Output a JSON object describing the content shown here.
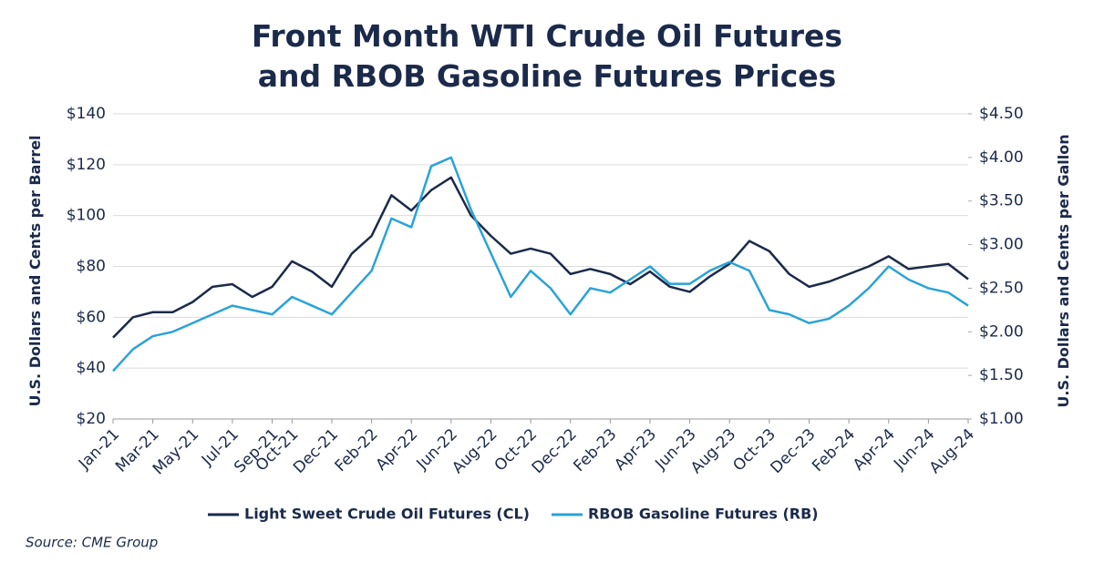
{
  "chart_data": {
    "type": "line",
    "title": "Front Month WTI Crude Oil Futures and RBOB Gasoline Futures Prices",
    "y_label": "U.S. Dollars and Cents per Barrel",
    "y2_label": "U.S. Dollars and Cents per Gallon",
    "source": "Source: CME Group",
    "x": [
      "2021-01",
      "2021-02",
      "2021-03",
      "2021-04",
      "2021-05",
      "2021-06",
      "2021-07",
      "2021-08",
      "2021-09",
      "2021-10",
      "2021-11",
      "2021-12",
      "2022-01",
      "2022-02",
      "2022-03",
      "2022-04",
      "2022-05",
      "2022-06",
      "2022-07",
      "2022-08",
      "2022-09",
      "2022-10",
      "2022-11",
      "2022-12",
      "2023-01",
      "2023-02",
      "2023-03",
      "2023-04",
      "2023-05",
      "2023-06",
      "2023-07",
      "2023-08",
      "2023-09",
      "2023-10",
      "2023-11",
      "2023-12",
      "2024-01",
      "2024-02",
      "2024-03",
      "2024-04",
      "2024-05",
      "2024-06",
      "2024-07",
      "2024-08"
    ],
    "xlim": [
      "2021-01",
      "2024-08"
    ],
    "xticks": [
      {
        "value": "2021-01",
        "label": "Jan-21"
      },
      {
        "value": "2021-03",
        "label": "Mar-21"
      },
      {
        "value": "2021-05",
        "label": "May-21"
      },
      {
        "value": "2021-07",
        "label": "Jul-21"
      },
      {
        "value": "2021-09",
        "label": "Sep-21"
      },
      {
        "value": "2021-10",
        "label": "Oct-21"
      },
      {
        "value": "2021-12",
        "label": "Dec-21"
      },
      {
        "value": "2022-02",
        "label": "Feb-22"
      },
      {
        "value": "2022-04",
        "label": "Apr-22"
      },
      {
        "value": "2022-06",
        "label": "Jun-22"
      },
      {
        "value": "2022-08",
        "label": "Aug-22"
      },
      {
        "value": "2022-10",
        "label": "Oct-22"
      },
      {
        "value": "2022-12",
        "label": "Dec-22"
      },
      {
        "value": "2023-02",
        "label": "Feb-23"
      },
      {
        "value": "2023-04",
        "label": "Apr-23"
      },
      {
        "value": "2023-06",
        "label": "Jun-23"
      },
      {
        "value": "2023-08",
        "label": "Aug-23"
      },
      {
        "value": "2023-10",
        "label": "Oct-23"
      },
      {
        "value": "2023-12",
        "label": "Dec-23"
      },
      {
        "value": "2024-02",
        "label": "Feb-24"
      },
      {
        "value": "2024-04",
        "label": "Apr-24"
      },
      {
        "value": "2024-06",
        "label": "Jun-24"
      },
      {
        "value": "2024-08",
        "label": "Aug-24"
      }
    ],
    "ylim": [
      20,
      140
    ],
    "yticks": [
      {
        "value": 20,
        "label": "$20"
      },
      {
        "value": 40,
        "label": "$40"
      },
      {
        "value": 60,
        "label": "$60"
      },
      {
        "value": 80,
        "label": "$80"
      },
      {
        "value": 100,
        "label": "$100"
      },
      {
        "value": 120,
        "label": "$120"
      },
      {
        "value": 140,
        "label": "$140"
      }
    ],
    "y2lim": [
      1.0,
      4.5
    ],
    "y2ticks": [
      {
        "value": 1.0,
        "label": "$1.00"
      },
      {
        "value": 1.5,
        "label": "$1.50"
      },
      {
        "value": 2.0,
        "label": "$2.00"
      },
      {
        "value": 2.5,
        "label": "$2.50"
      },
      {
        "value": 3.0,
        "label": "$3.00"
      },
      {
        "value": 3.5,
        "label": "$3.50"
      },
      {
        "value": 4.0,
        "label": "$4.00"
      },
      {
        "value": 4.5,
        "label": "$4.50"
      }
    ],
    "grid": true,
    "legend": "bottom",
    "series": [
      {
        "name": "Light Sweet Crude Oil Futures (CL)",
        "color": "#1b2a4a",
        "values": [
          52,
          60,
          62,
          62,
          66,
          72,
          73,
          68,
          72,
          82,
          78,
          72,
          85,
          92,
          108,
          102,
          110,
          115,
          100,
          92,
          85,
          87,
          85,
          77,
          79,
          77,
          73,
          78,
          72,
          70,
          76,
          81,
          90,
          86,
          77,
          72,
          74,
          77,
          80,
          84,
          79,
          80,
          81,
          75
        ]
      },
      {
        "name": "RBOB Gasoline Futures (RB)",
        "color": "#2aa3d8",
        "axis": "y2",
        "values": [
          1.55,
          1.8,
          1.95,
          2.0,
          2.1,
          2.2,
          2.3,
          2.25,
          2.2,
          2.4,
          2.3,
          2.2,
          2.45,
          2.7,
          3.3,
          3.2,
          3.9,
          4.0,
          3.4,
          2.9,
          2.4,
          2.7,
          2.5,
          2.2,
          2.5,
          2.45,
          2.6,
          2.75,
          2.55,
          2.55,
          2.7,
          2.8,
          2.7,
          2.25,
          2.2,
          2.1,
          2.15,
          2.3,
          2.5,
          2.75,
          2.6,
          2.5,
          2.45,
          2.3
        ]
      }
    ]
  }
}
